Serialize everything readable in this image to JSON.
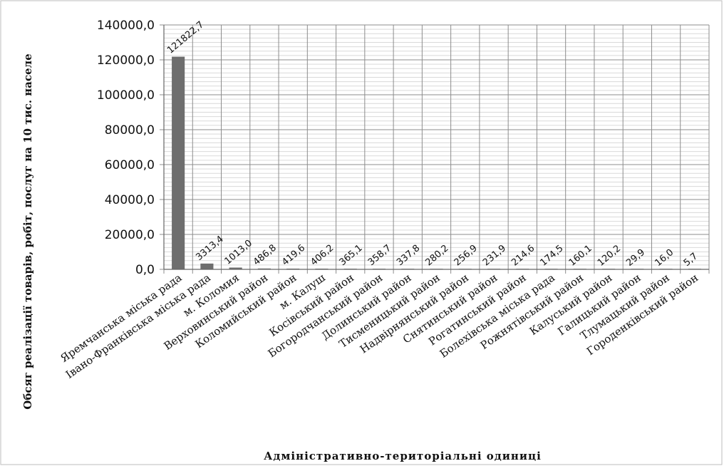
{
  "chart_data": {
    "type": "bar",
    "title": "",
    "xlabel": "Адміністративно-територіальні одиниці",
    "ylabel": "Обсяг реалізації товарів, робіт, послуг на 10 тис. населе",
    "ylim": [
      0,
      140000
    ],
    "yticks": [
      "0,0",
      "20000,0",
      "40000,0",
      "60000,0",
      "80000,0",
      "100000,0",
      "120000,0",
      "140000,0"
    ],
    "grid": true,
    "bar_color": "#6e6e6e",
    "categories": [
      "Яремчанська міська рада",
      "Івано-Франківська міська рада",
      "м. Коломия",
      "Верховинський район",
      "Коломийський район",
      "м. Калуш",
      "Косівський район",
      "Богородчанський район",
      "Долинський район",
      "Тисменицький район",
      "Надвірнянський район",
      "Снятинський район",
      "Рогатинський район",
      "Болехівська міська рада",
      "Рожнятівський район",
      "Калуський район",
      "Галицький район",
      "Тлумацький район",
      "Городенківський район"
    ],
    "values": [
      121822.7,
      3313.4,
      1013.0,
      486.8,
      419.6,
      406.2,
      365.1,
      358.7,
      337.8,
      280.2,
      256.9,
      231.9,
      214.6,
      174.5,
      160.1,
      120.2,
      29.9,
      16.0,
      5.7
    ],
    "data_labels": [
      "121822,7",
      "3313,4",
      "1013,0",
      "486,8",
      "419,6",
      "406,2",
      "365,1",
      "358,7",
      "337,8",
      "280,2",
      "256,9",
      "231,9",
      "214,6",
      "174,5",
      "160,1",
      "120,2",
      "29,9",
      "16,0",
      "5,7"
    ]
  }
}
